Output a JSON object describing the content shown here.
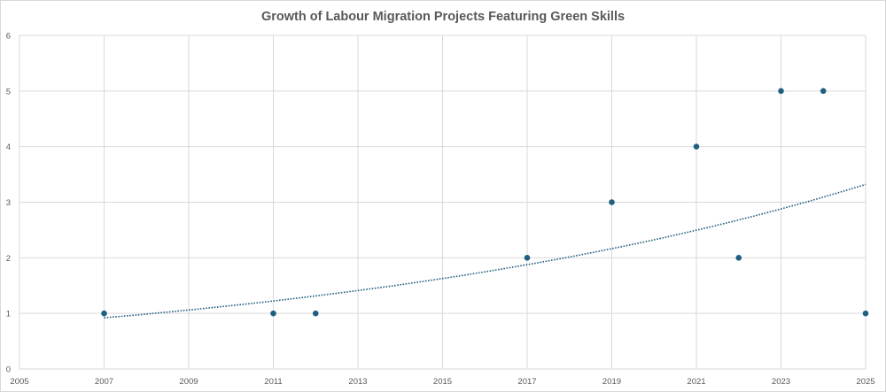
{
  "chart_data": {
    "type": "scatter",
    "title": "Growth of Labour Migration Projects Featuring Green Skills",
    "xlabel": "",
    "ylabel": "",
    "xlim": [
      2005,
      2025
    ],
    "ylim": [
      0,
      6
    ],
    "x_ticks": [
      2005,
      2007,
      2009,
      2011,
      2013,
      2015,
      2017,
      2019,
      2021,
      2023,
      2025
    ],
    "y_ticks": [
      0,
      1,
      2,
      3,
      4,
      5,
      6
    ],
    "grid": true,
    "legend": "none",
    "points": [
      {
        "x": 2007,
        "y": 1
      },
      {
        "x": 2011,
        "y": 1
      },
      {
        "x": 2012,
        "y": 1
      },
      {
        "x": 2017,
        "y": 2
      },
      {
        "x": 2019,
        "y": 3
      },
      {
        "x": 2021,
        "y": 4
      },
      {
        "x": 2022,
        "y": 2
      },
      {
        "x": 2023,
        "y": 5
      },
      {
        "x": 2024,
        "y": 5
      },
      {
        "x": 2025,
        "y": 1
      }
    ],
    "trendline": {
      "type": "exponential",
      "style": "dotted",
      "x_range": [
        2007,
        2025
      ],
      "y_start": 0.92,
      "y_end": 3.32
    },
    "colors": {
      "marker": "#1f5f7f",
      "trendline": "#1f5f7f",
      "grid": "#d9d9d9",
      "text": "#595959"
    }
  }
}
